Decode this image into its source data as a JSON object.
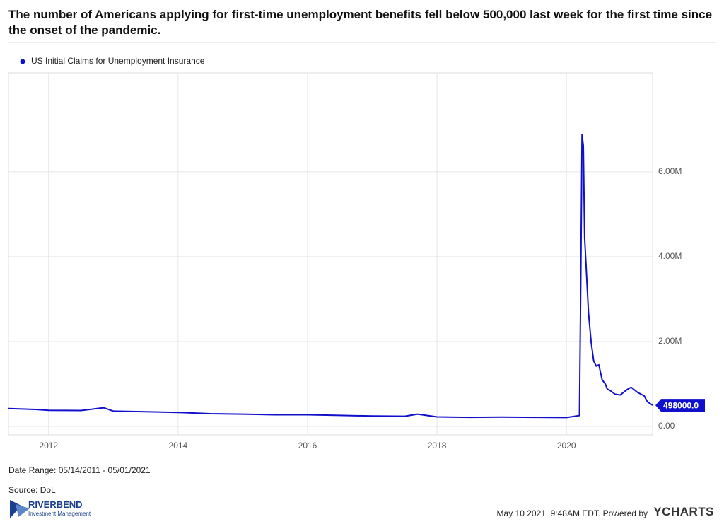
{
  "chart_data": {
    "type": "line",
    "title": "The number of Americans applying for first-time unemployment benefits fell below 500,000 last week for the first time since the onset of the pandemic.",
    "x": [
      2011.38,
      2011.8,
      2012.0,
      2012.5,
      2012.85,
      2013.0,
      2013.5,
      2014.0,
      2014.5,
      2015.0,
      2015.5,
      2016.0,
      2016.5,
      2017.0,
      2017.5,
      2017.7,
      2018.0,
      2018.5,
      2019.0,
      2019.5,
      2020.0,
      2020.2,
      2020.22,
      2020.24,
      2020.26,
      2020.28,
      2020.3,
      2020.34,
      2020.38,
      2020.42,
      2020.46,
      2020.5,
      2020.55,
      2020.6,
      2020.63,
      2020.67,
      2020.75,
      2020.83,
      2020.92,
      2020.97,
      2021.0,
      2021.1,
      2021.2,
      2021.25,
      2021.33
    ],
    "series": [
      {
        "name": "US Initial Claims for Unemployment Insurance",
        "color": "#1010cc",
        "values": [
          420000,
          400000,
          380000,
          375000,
          440000,
          360000,
          345000,
          330000,
          300000,
          290000,
          275000,
          275000,
          260000,
          245000,
          240000,
          290000,
          225000,
          215000,
          220000,
          215000,
          210000,
          256000,
          3307000,
          6867000,
          6615000,
          4440000,
          3870000,
          2680000,
          2000000,
          1540000,
          1420000,
          1450000,
          1100000,
          1000000,
          880000,
          850000,
          760000,
          740000,
          850000,
          900000,
          920000,
          800000,
          720000,
          580000,
          498000
        ],
        "value_labels": [
          null,
          null,
          null,
          null,
          null,
          null,
          null,
          null,
          null,
          null,
          null,
          null,
          null,
          null,
          null,
          null,
          null,
          null,
          null,
          null,
          null,
          null,
          null,
          null,
          null,
          null,
          null,
          null,
          null,
          null,
          null,
          null,
          null,
          null,
          null,
          null,
          null,
          null,
          null,
          null,
          null,
          null,
          null,
          null,
          "498000.0"
        ]
      }
    ],
    "xlim": [
      2011.38,
      2021.33
    ],
    "xticks": [
      2012,
      2014,
      2016,
      2018,
      2020
    ],
    "ylim": [
      -200000,
      8330000
    ],
    "yticks": [
      {
        "value": 0,
        "label": "0.00"
      },
      {
        "value": 2000000,
        "label": "2.00M"
      },
      {
        "value": 4000000,
        "label": "4.00M"
      },
      {
        "value": 6000000,
        "label": "6.00M"
      }
    ],
    "grid": true,
    "date_range": "Date Range: 05/14/2011 - 05/01/2021",
    "source": "Source: DoL"
  },
  "footer": {
    "timestamp": "May 10 2021, 9:48AM EDT. Powered by",
    "brand": "YCHARTS",
    "logo_name": "RIVERBEND",
    "logo_tagline": "Investment Management"
  }
}
